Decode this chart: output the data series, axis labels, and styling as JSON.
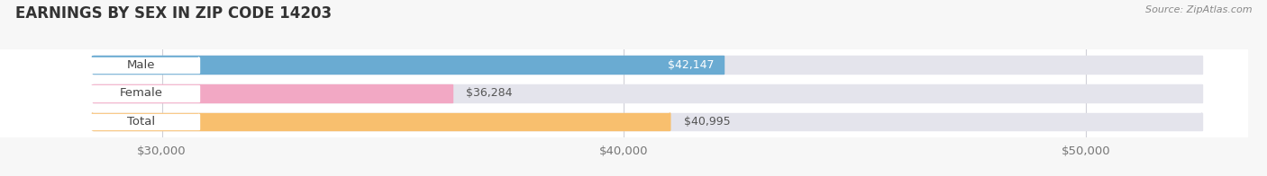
{
  "title": "EARNINGS BY SEX IN ZIP CODE 14203",
  "categories": [
    "Male",
    "Female",
    "Total"
  ],
  "values": [
    42147,
    36284,
    40995
  ],
  "bar_colors": [
    "#6aabd2",
    "#f2a8c4",
    "#f8bf6e"
  ],
  "bar_bg_color": "#e4e4ec",
  "value_labels": [
    "$42,147",
    "$36,284",
    "$40,995"
  ],
  "value_label_colors": [
    "#ffffff",
    "#666666",
    "#666666"
  ],
  "xmin": 28500,
  "xmax": 52500,
  "xticks": [
    30000,
    40000,
    50000
  ],
  "xtick_labels": [
    "$30,000",
    "$40,000",
    "$50,000"
  ],
  "source_text": "Source: ZipAtlas.com",
  "title_fontsize": 12,
  "tick_fontsize": 9.5,
  "value_fontsize": 9,
  "label_fontsize": 9.5,
  "bg_color": "#f7f7f7",
  "plot_bg_color": "#ffffff",
  "bar_height": 0.62
}
